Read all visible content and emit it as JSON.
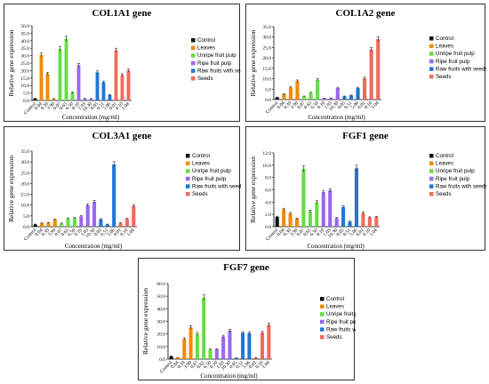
{
  "colors": [
    "#111111",
    "#f08c00",
    "#66dd44",
    "#9a66ee",
    "#1e77d8",
    "#f06a5c"
  ],
  "chart_data": [
    {
      "type": "bar",
      "title": "COL1A1 gene",
      "xlabel": "Concentration (mg/ml)",
      "ylabel": "Relative gene expression",
      "ylim": [
        0,
        50
      ],
      "ytick_labels": [
        "0.0",
        "5.0",
        "10.0",
        "15.0",
        "20.0",
        "25.0",
        "30.0",
        "35.0",
        "40.0",
        "45.0",
        "50.0"
      ],
      "categories": [
        "Control",
        "0.04",
        "0.39",
        "3.90",
        "0.07",
        "0.65",
        "6.50",
        "0.10",
        "1.03",
        "10.30",
        "0.05",
        "0.51",
        "5.06",
        "0.01",
        "0.10",
        "1.04"
      ],
      "values": [
        1.2,
        30.5,
        17.8,
        1.0,
        34.5,
        41.2,
        5.4,
        23.6,
        1.0,
        1.0,
        18.8,
        12.2,
        3.6,
        33.6,
        17.0,
        20.0
      ],
      "errors": [
        0.3,
        1.2,
        1.0,
        0.3,
        1.5,
        1.8,
        0.4,
        1.2,
        0.3,
        0.3,
        1.0,
        0.8,
        0.4,
        1.4,
        0.9,
        1.0
      ],
      "groups": [
        0,
        1,
        1,
        1,
        2,
        2,
        2,
        3,
        3,
        3,
        4,
        4,
        4,
        5,
        5,
        5
      ],
      "legend": [
        "Control",
        "Leaves",
        "Unripe fruit pulp",
        "Ripe fruit pulp",
        "Raw fruits with seeds",
        "Seeds"
      ],
      "legend_position": "right",
      "grid": false
    },
    {
      "type": "bar",
      "title": "COL1A2 gene",
      "xlabel": "Concentration (mg/ml)",
      "ylabel": "Relative gene expression",
      "ylim": [
        0,
        35
      ],
      "ytick_labels": [
        "0.0",
        "5.0",
        "10.0",
        "15.0",
        "20.0",
        "25.0",
        "30.0",
        "35.0"
      ],
      "categories": [
        "Control",
        "0.04",
        "0.39",
        "3.90",
        "0.07",
        "0.65",
        "6.50",
        "0.10",
        "1.03",
        "10.30",
        "0.05",
        "0.51",
        "5.06",
        "0.01",
        "0.10",
        "1.04"
      ],
      "values": [
        1.0,
        2.6,
        5.8,
        8.9,
        1.5,
        3.2,
        9.5,
        0.6,
        0.7,
        5.5,
        1.5,
        2.0,
        5.5,
        10.2,
        24.0,
        29.0
      ],
      "errors": [
        0.2,
        0.3,
        0.4,
        0.5,
        0.2,
        0.3,
        0.5,
        0.1,
        0.1,
        0.4,
        0.2,
        0.2,
        0.4,
        0.6,
        1.0,
        1.2
      ],
      "groups": [
        0,
        1,
        1,
        1,
        2,
        2,
        2,
        3,
        3,
        3,
        4,
        4,
        4,
        5,
        5,
        5
      ],
      "legend": [
        "Control",
        "Leaves",
        "Unripe fruit pulp",
        "Ripe fruit pulp",
        "Raw fruits with seeds",
        "Seeds"
      ],
      "legend_position": "right",
      "grid": false
    },
    {
      "type": "bar",
      "title": "COL3A1 gene",
      "xlabel": "Concentration (mg/ml)",
      "ylabel": "Relative gene expression",
      "ylim": [
        0,
        35
      ],
      "ytick_labels": [
        "0.0",
        "5.0",
        "10.0",
        "15.0",
        "20.0",
        "25.0",
        "30.0",
        "35.0"
      ],
      "categories": [
        "Control",
        "0.04",
        "0.39",
        "3.90",
        "0.07",
        "0.65",
        "6.50",
        "0.10",
        "1.03",
        "10.30",
        "0.05",
        "0.51",
        "5.06",
        "0.01",
        "0.10",
        "1.04"
      ],
      "values": [
        1.0,
        1.6,
        1.8,
        3.3,
        1.5,
        3.8,
        4.0,
        4.8,
        10.0,
        11.5,
        3.4,
        1.0,
        28.8,
        1.6,
        3.6,
        9.6
      ],
      "errors": [
        0.2,
        0.2,
        0.2,
        0.3,
        0.2,
        0.3,
        0.3,
        0.3,
        0.6,
        0.7,
        0.3,
        0.2,
        1.3,
        0.2,
        0.3,
        0.6
      ],
      "groups": [
        0,
        1,
        1,
        1,
        2,
        2,
        2,
        3,
        3,
        3,
        4,
        4,
        4,
        5,
        5,
        5
      ],
      "legend": [
        "Control",
        "Leaves",
        "Unripe fruit pulp",
        "Ripe fruit pulp",
        "Raw fruits with seeds",
        "Seeds"
      ],
      "legend_position": "right",
      "grid": false
    },
    {
      "type": "bar",
      "title": "FGF1 gene",
      "xlabel": "Concentration (mg/ml)",
      "ylabel": "Relative gene expression",
      "ylim": [
        0,
        12
      ],
      "ytick_labels": [
        "0.0",
        "2.0",
        "4.0",
        "6.0",
        "8.0",
        "10.0",
        "12.0"
      ],
      "categories": [
        "Control",
        "0.04",
        "0.39",
        "3.90",
        "0.07",
        "0.65",
        "6.50",
        "0.10",
        "1.03",
        "10.30",
        "0.05",
        "0.51",
        "5.06",
        "0.01",
        "0.10",
        "1.04"
      ],
      "values": [
        1.6,
        2.8,
        2.1,
        1.3,
        9.4,
        2.5,
        4.0,
        5.6,
        5.9,
        1.4,
        3.2,
        0.8,
        9.5,
        2.2,
        1.5,
        1.6
      ],
      "errors": [
        0.1,
        0.2,
        0.2,
        0.1,
        0.5,
        0.2,
        0.3,
        0.3,
        0.3,
        0.1,
        0.2,
        0.1,
        0.5,
        0.2,
        0.1,
        0.1
      ],
      "groups": [
        0,
        1,
        1,
        1,
        2,
        2,
        2,
        3,
        3,
        3,
        4,
        4,
        4,
        5,
        5,
        5
      ],
      "legend": [
        "Control",
        "Leaves",
        "Unripe fruit pulp",
        "Ripe fruit pulp",
        "Raw fruits with seeds",
        "Seeds"
      ],
      "legend_position": "right",
      "grid": false
    },
    {
      "type": "bar",
      "title": "FGF7 gene",
      "xlabel": "Concentration (mg/ml)",
      "ylabel": "Relative gene expression",
      "ylim": [
        0,
        60
      ],
      "ytick_labels": [
        "0.0",
        "10.0",
        "20.0",
        "30.0",
        "40.0",
        "50.0",
        "60.0"
      ],
      "categories": [
        "Control",
        "0.04",
        "0.39",
        "3.90",
        "0.07",
        "0.65",
        "6.50",
        "0.10",
        "1.03",
        "10.30",
        "0.05",
        "0.51",
        "5.06",
        "0.01",
        "0.10",
        "1.04"
      ],
      "values": [
        2.2,
        1.0,
        16.0,
        25.2,
        20.0,
        48.8,
        7.6,
        7.8,
        18.0,
        22.6,
        0.8,
        20.8,
        20.6,
        1.0,
        21.0,
        27.2
      ],
      "errors": [
        0.3,
        0.2,
        1.0,
        1.4,
        1.2,
        2.2,
        0.5,
        0.5,
        1.0,
        1.2,
        0.2,
        1.1,
        1.1,
        0.2,
        1.1,
        1.4
      ],
      "groups": [
        0,
        1,
        1,
        1,
        2,
        2,
        2,
        3,
        3,
        3,
        4,
        4,
        4,
        5,
        5,
        5
      ],
      "legend": [
        "Control",
        "Leaves",
        "Unripe fruit pulp",
        "Ripe fruit pulp",
        "Raw fruits with seeds",
        "Seeds"
      ],
      "legend_position": "right",
      "grid": false
    }
  ]
}
